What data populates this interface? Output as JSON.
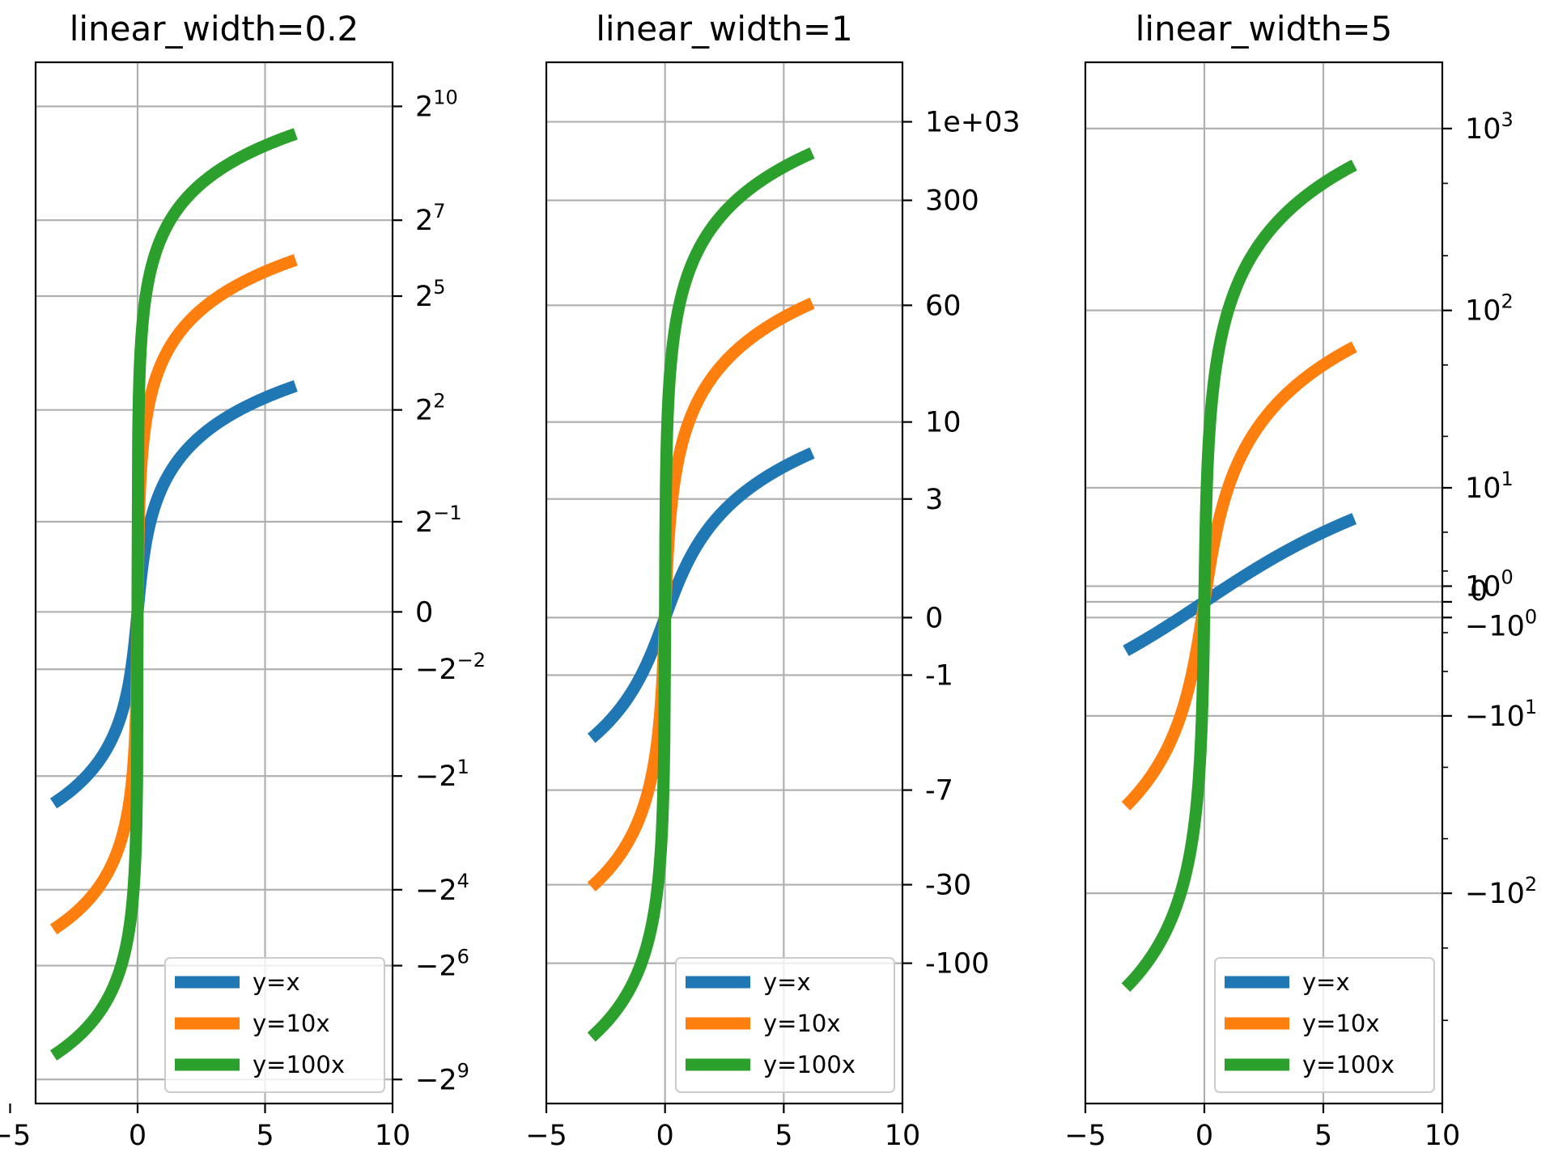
{
  "chart_data": [
    {
      "type": "line",
      "title": "linear_width=0.2",
      "yscale": "asinh",
      "linear_width": 0.2,
      "xlim": [
        -4,
        10
      ],
      "ylim": [
        -900,
        1600
      ],
      "grid": true,
      "legend_position": "lower-right",
      "xticks": [
        -5,
        0,
        5,
        10
      ],
      "xtick_labels": [
        "−5",
        "0",
        "5",
        "10"
      ],
      "yticks": [
        {
          "value": 1024,
          "base": "2",
          "exp": "10"
        },
        {
          "value": 128,
          "base": "2",
          "exp": "7"
        },
        {
          "value": 32,
          "base": "2",
          "exp": "5"
        },
        {
          "value": 4,
          "base": "2",
          "exp": "2"
        },
        {
          "value": 0.5,
          "base": "2",
          "exp": "−1"
        },
        {
          "value": 0,
          "base": "0",
          "exp": ""
        },
        {
          "value": -0.25,
          "base": "−2",
          "exp": "−2"
        },
        {
          "value": -2,
          "base": "−2",
          "exp": "1"
        },
        {
          "value": -16,
          "base": "−2",
          "exp": "4"
        },
        {
          "value": -64,
          "base": "−2",
          "exp": "6"
        },
        {
          "value": -512,
          "base": "−2",
          "exp": "9"
        }
      ],
      "series": [
        {
          "name": "y=x",
          "color": "#1f77b4",
          "x_range": [
            -3.3,
            6.2
          ],
          "slope": 1
        },
        {
          "name": "y=10x",
          "color": "#ff7f0e",
          "x_range": [
            -3.3,
            6.2
          ],
          "slope": 10
        },
        {
          "name": "y=100x",
          "color": "#2ca02c",
          "x_range": [
            -3.3,
            6.2
          ],
          "slope": 100
        }
      ]
    },
    {
      "type": "line",
      "title": "linear_width=1",
      "yscale": "asinh",
      "linear_width": 1,
      "xlim": [
        -5,
        10
      ],
      "ylim": [
        -900,
        1500
      ],
      "grid": true,
      "legend_position": "lower-right",
      "xticks": [
        -5,
        0,
        5,
        10
      ],
      "xtick_labels": [
        "−5",
        "0",
        "5",
        "10"
      ],
      "yticks": [
        {
          "value": 1000,
          "base": "1e+03",
          "exp": ""
        },
        {
          "value": 300,
          "base": "300",
          "exp": ""
        },
        {
          "value": 60,
          "base": "60",
          "exp": ""
        },
        {
          "value": 10,
          "base": "10",
          "exp": ""
        },
        {
          "value": 3,
          "base": "3",
          "exp": ""
        },
        {
          "value": 0,
          "base": "0",
          "exp": ""
        },
        {
          "value": -1,
          "base": "-1",
          "exp": ""
        },
        {
          "value": -7,
          "base": "-7",
          "exp": ""
        },
        {
          "value": -30,
          "base": "-30",
          "exp": ""
        },
        {
          "value": -100,
          "base": "-100",
          "exp": ""
        }
      ],
      "series": [
        {
          "name": "y=x",
          "color": "#1f77b4",
          "x_range": [
            -3.1,
            6.2
          ],
          "slope": 1
        },
        {
          "name": "y=10x",
          "color": "#ff7f0e",
          "x_range": [
            -3.1,
            6.2
          ],
          "slope": 10
        },
        {
          "name": "y=100x",
          "color": "#2ca02c",
          "x_range": [
            -3.1,
            6.2
          ],
          "slope": 100
        }
      ]
    },
    {
      "type": "line",
      "title": "linear_width=5",
      "yscale": "asinh",
      "linear_width": 5,
      "xlim": [
        -5,
        10
      ],
      "ylim": [
        -600,
        1000
      ],
      "grid": true,
      "legend_position": "lower-right",
      "xticks": [
        -5,
        0,
        5,
        10
      ],
      "xtick_labels": [
        "−5",
        "0",
        "5",
        "10"
      ],
      "yticks": [
        {
          "value": 1000,
          "base": "10",
          "exp": "3"
        },
        {
          "value": 100,
          "base": "10",
          "exp": "2"
        },
        {
          "value": 10,
          "base": "10",
          "exp": "1"
        },
        {
          "value": 1,
          "base": "10",
          "exp": "0"
        },
        {
          "value": 0,
          "base": "0",
          "exp": ""
        },
        {
          "value": -1,
          "base": "−10",
          "exp": "0"
        },
        {
          "value": -10,
          "base": "−10",
          "exp": "1"
        },
        {
          "value": -100,
          "base": "−10",
          "exp": "2"
        }
      ],
      "minor_yticks": [
        500,
        200,
        50,
        20,
        5,
        2,
        -2,
        -5,
        -20,
        -50,
        -200,
        -500
      ],
      "series": [
        {
          "name": "y=x",
          "color": "#1f77b4",
          "x_range": [
            -3.3,
            6.3
          ],
          "slope": 1
        },
        {
          "name": "y=10x",
          "color": "#ff7f0e",
          "x_range": [
            -3.3,
            6.3
          ],
          "slope": 10
        },
        {
          "name": "y=100x",
          "color": "#2ca02c",
          "x_range": [
            -3.3,
            6.3
          ],
          "slope": 100
        }
      ]
    }
  ]
}
